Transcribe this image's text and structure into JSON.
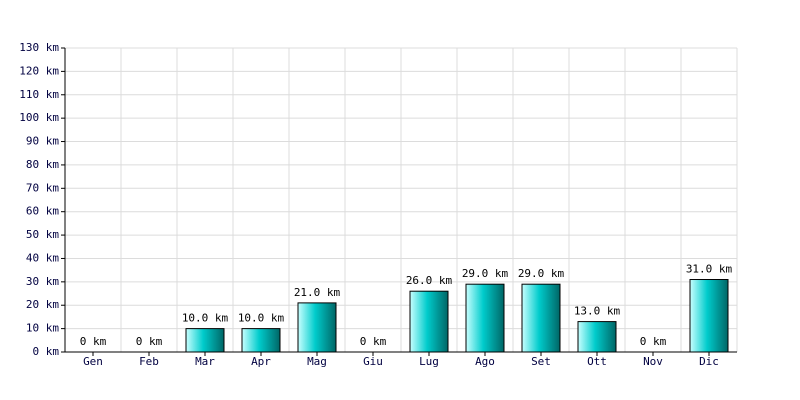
{
  "chart_data": {
    "type": "bar",
    "categories": [
      "Gen",
      "Feb",
      "Mar",
      "Apr",
      "Mag",
      "Giu",
      "Lug",
      "Ago",
      "Set",
      "Ott",
      "Nov",
      "Dic"
    ],
    "values": [
      0,
      0,
      10,
      10,
      21,
      0,
      26,
      29,
      29,
      13,
      0,
      31
    ],
    "value_labels": [
      "0 km",
      "0 km",
      "10.0 km",
      "10.0 km",
      "21.0 km",
      "0 km",
      "26.0 km",
      "29.0 km",
      "29.0 km",
      "13.0 km",
      "0 km",
      "31.0 km"
    ],
    "color": "#00cccc",
    "ylim": [
      0,
      130
    ],
    "yticks": [
      {
        "value": 0,
        "label": "0 km"
      },
      {
        "value": 10,
        "label": "10 km"
      },
      {
        "value": 20,
        "label": "20 km"
      },
      {
        "value": 30,
        "label": "30 km"
      },
      {
        "value": 40,
        "label": "40 km"
      },
      {
        "value": 50,
        "label": "50 km"
      },
      {
        "value": 60,
        "label": "60 km"
      },
      {
        "value": 70,
        "label": "70 km"
      },
      {
        "value": 80,
        "label": "80 km"
      },
      {
        "value": 90,
        "label": "90 km"
      },
      {
        "value": 100,
        "label": "100 km"
      },
      {
        "value": 110,
        "label": "110 km"
      },
      {
        "value": 120,
        "label": "120 km"
      },
      {
        "value": 130,
        "label": "130 km"
      }
    ],
    "grid": true
  }
}
